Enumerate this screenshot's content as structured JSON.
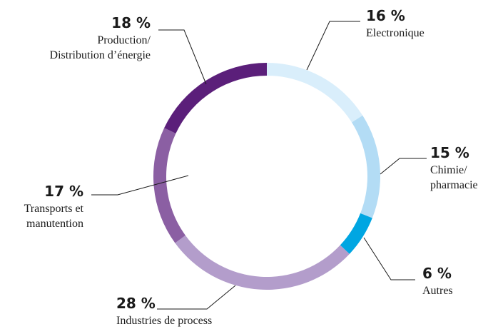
{
  "chart_data": {
    "type": "donut",
    "categories": [
      "Electronique",
      "Chimie/\npharmacie",
      "Autres",
      "Industries de process",
      "Transports et\nmanutention",
      "Production/\nDistribution d’énergie"
    ],
    "values": [
      16,
      15,
      6,
      28,
      17,
      18
    ],
    "value_labels": [
      "16 %",
      "15 %",
      "6 %",
      "28 %",
      "17 %",
      "18 %"
    ],
    "colors": [
      "#d9eefb",
      "#b3dcf5",
      "#00a6e2",
      "#b39dcb",
      "#8b5fa3",
      "#5b1f7a"
    ]
  }
}
